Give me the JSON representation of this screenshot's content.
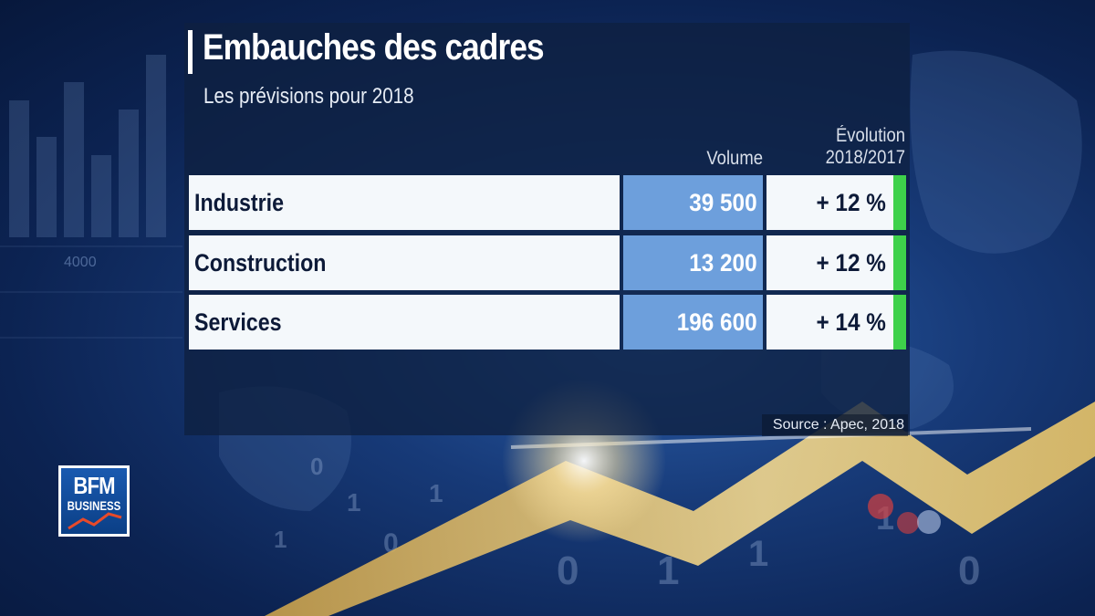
{
  "title": "Embauches des cadres",
  "subtitle": "Les prévisions pour 2018",
  "columns": {
    "volume": "Volume",
    "evolution_line1": "Évolution",
    "evolution_line2": "2018/2017"
  },
  "rows": [
    {
      "sector": "Industrie",
      "volume": "39 500",
      "evolution": "+ 12 %"
    },
    {
      "sector": "Construction",
      "volume": "13 200",
      "evolution": "+ 12 %"
    },
    {
      "sector": "Services",
      "volume": "196 600",
      "evolution": "+ 14 %"
    }
  ],
  "source": "Source : Apec, 2018",
  "logo": {
    "line1": "BFM",
    "line2": "BUSINESS"
  },
  "background": {
    "ticker_text": "4000",
    "digits": [
      "0",
      "1",
      "1",
      "0",
      "1",
      "1",
      "0",
      "1",
      "0",
      "1"
    ]
  },
  "colors": {
    "volume_cell": "#6d9fdc",
    "growth_flag": "#3ed14a",
    "panel": "#0e2040"
  }
}
